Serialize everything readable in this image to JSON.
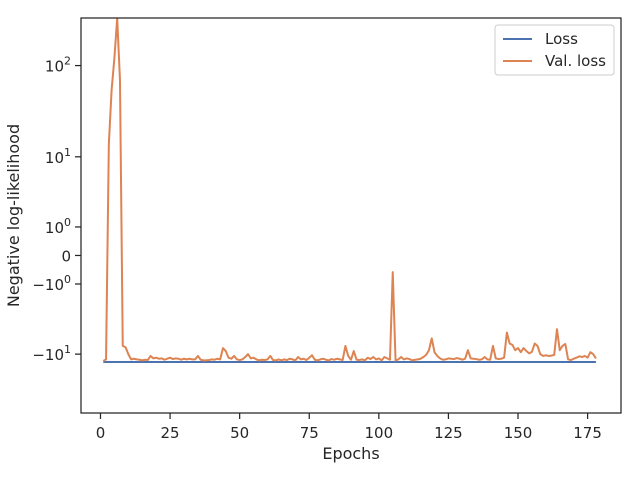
{
  "chart_data": {
    "type": "line",
    "xlabel": "Epochs",
    "ylabel": "Negative log-likelihood",
    "xlim": [
      -7,
      187
    ],
    "yscale": "symlog",
    "ylim": [
      -45,
      320
    ],
    "grid": false,
    "legend_position": "top-right",
    "x_ticks": [
      0,
      25,
      50,
      75,
      100,
      125,
      150,
      175
    ],
    "y_ticks": [
      {
        "value": 100,
        "label": "10",
        "exponent": "2"
      },
      {
        "value": 10,
        "label": "10",
        "exponent": "1"
      },
      {
        "value": 1,
        "label": "10",
        "exponent": "0"
      },
      {
        "value": 0,
        "label": "0",
        "exponent": ""
      },
      {
        "value": -1,
        "label": "−10",
        "exponent": "0"
      },
      {
        "value": -10,
        "label": "−10",
        "exponent": "1"
      }
    ],
    "series": [
      {
        "name": "Loss",
        "color": "#4c72b0",
        "points": [
          [
            1,
            -12.3
          ],
          [
            178,
            -12.3
          ]
        ]
      },
      {
        "name": "Val. loss",
        "color": "#dd8452",
        "points": [
          [
            1,
            -12
          ],
          [
            2,
            -11.5
          ],
          [
            3,
            14
          ],
          [
            4,
            55
          ],
          [
            5,
            120
          ],
          [
            6,
            320
          ],
          [
            7,
            70
          ],
          [
            8,
            -8
          ],
          [
            9,
            -8.3
          ],
          [
            10,
            -10
          ],
          [
            11,
            -11.5
          ],
          [
            12,
            -11.3
          ],
          [
            13,
            -11.5
          ],
          [
            14,
            -11.6
          ],
          [
            15,
            -11.8
          ],
          [
            16,
            -11.6
          ],
          [
            17,
            -11.7
          ],
          [
            18,
            -10.5
          ],
          [
            19,
            -11.2
          ],
          [
            20,
            -11
          ],
          [
            21,
            -11.3
          ],
          [
            22,
            -11.2
          ],
          [
            23,
            -11.6
          ],
          [
            24,
            -11.3
          ],
          [
            25,
            -11
          ],
          [
            26,
            -11.4
          ],
          [
            27,
            -11.2
          ],
          [
            28,
            -11.3
          ],
          [
            29,
            -11.6
          ],
          [
            30,
            -11.3
          ],
          [
            31,
            -11.5
          ],
          [
            32,
            -11.3
          ],
          [
            33,
            -11.5
          ],
          [
            34,
            -11.5
          ],
          [
            35,
            -10.5
          ],
          [
            36,
            -11.6
          ],
          [
            37,
            -11.8
          ],
          [
            38,
            -11.8
          ],
          [
            39,
            -11.7
          ],
          [
            40,
            -11.5
          ],
          [
            41,
            -11.6
          ],
          [
            42,
            -11.3
          ],
          [
            43,
            -11.5
          ],
          [
            44,
            -8.5
          ],
          [
            45,
            -9.2
          ],
          [
            46,
            -11
          ],
          [
            47,
            -11.3
          ],
          [
            48,
            -10.5
          ],
          [
            49,
            -11.5
          ],
          [
            50,
            -11.7
          ],
          [
            51,
            -11.5
          ],
          [
            52,
            -10.8
          ],
          [
            53,
            -10
          ],
          [
            54,
            -11.2
          ],
          [
            55,
            -11
          ],
          [
            56,
            -11.5
          ],
          [
            57,
            -11.8
          ],
          [
            58,
            -11.6
          ],
          [
            59,
            -11.7
          ],
          [
            60,
            -11.5
          ],
          [
            61,
            -10.5
          ],
          [
            62,
            -11.7
          ],
          [
            63,
            -11.8
          ],
          [
            64,
            -11.5
          ],
          [
            65,
            -11.8
          ],
          [
            66,
            -11.5
          ],
          [
            67,
            -11.7
          ],
          [
            68,
            -11.3
          ],
          [
            69,
            -11.5
          ],
          [
            70,
            -11.8
          ],
          [
            71,
            -10.8
          ],
          [
            72,
            -11.5
          ],
          [
            73,
            -11.3
          ],
          [
            74,
            -11.7
          ],
          [
            75,
            -11
          ],
          [
            76,
            -10.3
          ],
          [
            77,
            -11.6
          ],
          [
            78,
            -11.8
          ],
          [
            79,
            -11.5
          ],
          [
            80,
            -11.3
          ],
          [
            81,
            -11.6
          ],
          [
            82,
            -11.8
          ],
          [
            83,
            -11.4
          ],
          [
            84,
            -11.6
          ],
          [
            85,
            -11.3
          ],
          [
            86,
            -11.5
          ],
          [
            87,
            -11.7
          ],
          [
            88,
            -8
          ],
          [
            89,
            -10.5
          ],
          [
            90,
            -11.6
          ],
          [
            91,
            -9.2
          ],
          [
            92,
            -11.6
          ],
          [
            93,
            -11.7
          ],
          [
            94,
            -11.5
          ],
          [
            95,
            -11.8
          ],
          [
            96,
            -11
          ],
          [
            97,
            -11.4
          ],
          [
            98,
            -10.8
          ],
          [
            99,
            -11.5
          ],
          [
            100,
            -11.2
          ],
          [
            101,
            -11.8
          ],
          [
            102,
            -10.8
          ],
          [
            103,
            -11.2
          ],
          [
            104,
            -11.6
          ],
          [
            105,
            -0.5
          ],
          [
            106,
            -11.8
          ],
          [
            107,
            -11.5
          ],
          [
            108,
            -10.8
          ],
          [
            109,
            -11.5
          ],
          [
            110,
            -11.2
          ],
          [
            111,
            -11.4
          ],
          [
            112,
            -11.8
          ],
          [
            113,
            -11.6
          ],
          [
            114,
            -11.5
          ],
          [
            115,
            -11.3
          ],
          [
            116,
            -10.8
          ],
          [
            117,
            -10.2
          ],
          [
            118,
            -9
          ],
          [
            119,
            -6.5
          ],
          [
            120,
            -9.5
          ],
          [
            121,
            -10.5
          ],
          [
            122,
            -11.2
          ],
          [
            123,
            -11.6
          ],
          [
            124,
            -11.5
          ],
          [
            125,
            -11.2
          ],
          [
            126,
            -11.3
          ],
          [
            127,
            -11.4
          ],
          [
            128,
            -11.1
          ],
          [
            129,
            -11.3
          ],
          [
            130,
            -11.6
          ],
          [
            131,
            -11.3
          ],
          [
            132,
            -9
          ],
          [
            133,
            -11.2
          ],
          [
            134,
            -11.3
          ],
          [
            135,
            -11.4
          ],
          [
            136,
            -11.6
          ],
          [
            137,
            -11.5
          ],
          [
            138,
            -10.8
          ],
          [
            139,
            -11.5
          ],
          [
            140,
            -11.6
          ],
          [
            141,
            -8
          ],
          [
            142,
            -11.2
          ],
          [
            143,
            -11.4
          ],
          [
            144,
            -11.3
          ],
          [
            145,
            -11
          ],
          [
            146,
            -5.5
          ],
          [
            147,
            -7.5
          ],
          [
            148,
            -7.8
          ],
          [
            149,
            -9
          ],
          [
            150,
            -8.5
          ],
          [
            151,
            -9.5
          ],
          [
            152,
            -8.5
          ],
          [
            153,
            -9.2
          ],
          [
            154,
            -9.8
          ],
          [
            155,
            -9.4
          ],
          [
            156,
            -7.5
          ],
          [
            157,
            -8
          ],
          [
            158,
            -10
          ],
          [
            159,
            -10.5
          ],
          [
            160,
            -10.3
          ],
          [
            161,
            -10.5
          ],
          [
            162,
            -10.4
          ],
          [
            163,
            -10.2
          ],
          [
            164,
            -5
          ],
          [
            165,
            -9
          ],
          [
            166,
            -8
          ],
          [
            167,
            -7.6
          ],
          [
            168,
            -11.5
          ],
          [
            169,
            -11.7
          ],
          [
            170,
            -11.3
          ],
          [
            171,
            -11
          ],
          [
            172,
            -10.6
          ],
          [
            173,
            -10.8
          ],
          [
            174,
            -10.5
          ],
          [
            175,
            -11
          ],
          [
            176,
            -9.5
          ],
          [
            177,
            -10
          ],
          [
            178,
            -11.2
          ]
        ]
      }
    ]
  }
}
